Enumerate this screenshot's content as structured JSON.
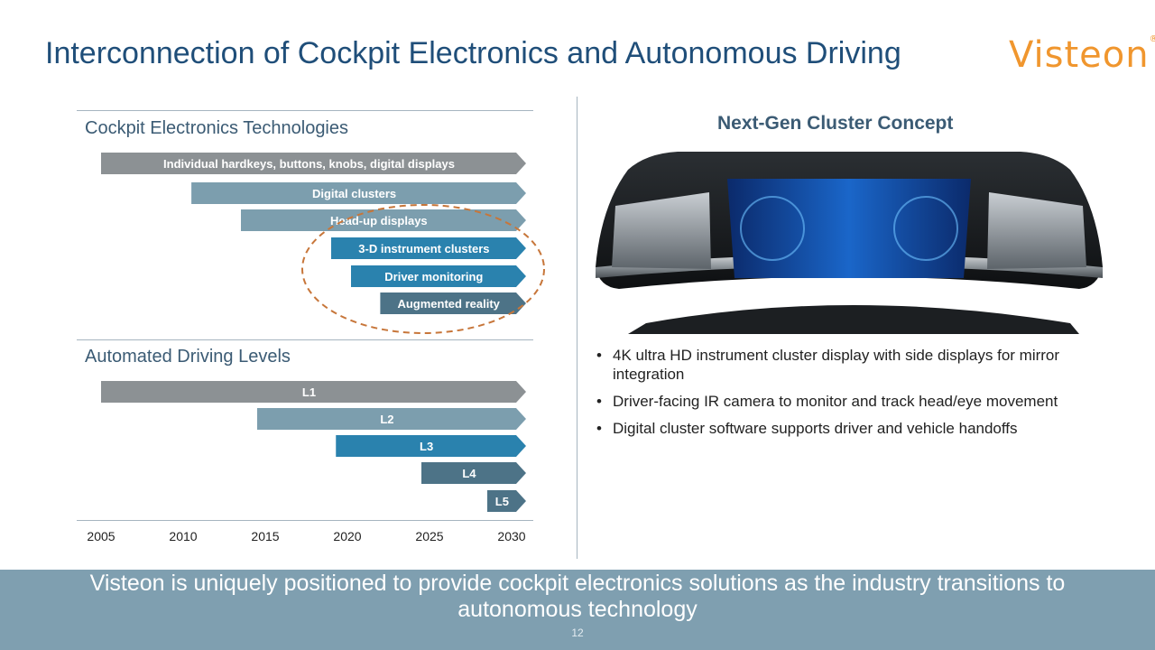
{
  "title": "Interconnection of Cockpit Electronics and Autonomous Driving",
  "logo": {
    "text": "Visteon",
    "mark": "®",
    "color": "#f0962e"
  },
  "left": {
    "cockpit_title": "Cockpit Electronics Technologies",
    "cockpit_items": [
      {
        "label": "Individual hardkeys, buttons, knobs, digital displays",
        "start_year": 2005,
        "color": "#8c9194"
      },
      {
        "label": "Digital clusters",
        "start_year": 2010.5,
        "color": "#7c9eae"
      },
      {
        "label": "Head-up displays",
        "start_year": 2013.5,
        "color": "#7c9eae"
      },
      {
        "label": "3-D instrument clusters",
        "start_year": 2019,
        "color": "#2a82ae"
      },
      {
        "label": "Driver monitoring",
        "start_year": 2020.2,
        "color": "#2a82ae"
      },
      {
        "label": "Augmented reality",
        "start_year": 2022,
        "color": "#4d7387"
      }
    ],
    "driving_title": "Automated Driving Levels",
    "driving_items": [
      {
        "label": "L1",
        "start_year": 2005,
        "color": "#8c9194"
      },
      {
        "label": "L2",
        "start_year": 2014.5,
        "color": "#7c9eae"
      },
      {
        "label": "L3",
        "start_year": 2019.3,
        "color": "#2a82ae"
      },
      {
        "label": "L4",
        "start_year": 2024.5,
        "color": "#4d7387"
      },
      {
        "label": "L5",
        "start_year": 2028.5,
        "color": "#4d7387"
      }
    ],
    "years": [
      "2005",
      "2010",
      "2015",
      "2020",
      "2025",
      "2030"
    ]
  },
  "right": {
    "concept_title": "Next-Gen Cluster Concept",
    "image_icon": "cluster-display-image",
    "bullets": [
      "4K ultra HD instrument cluster display with side displays for mirror integration",
      "Driver-facing IR camera to monitor and track head/eye movement",
      "Digital cluster software supports driver and vehicle handoffs"
    ]
  },
  "footer": {
    "text": "Visteon is uniquely positioned to provide cockpit electronics solutions as the industry transitions to autonomous technology",
    "page_number": "12"
  }
}
